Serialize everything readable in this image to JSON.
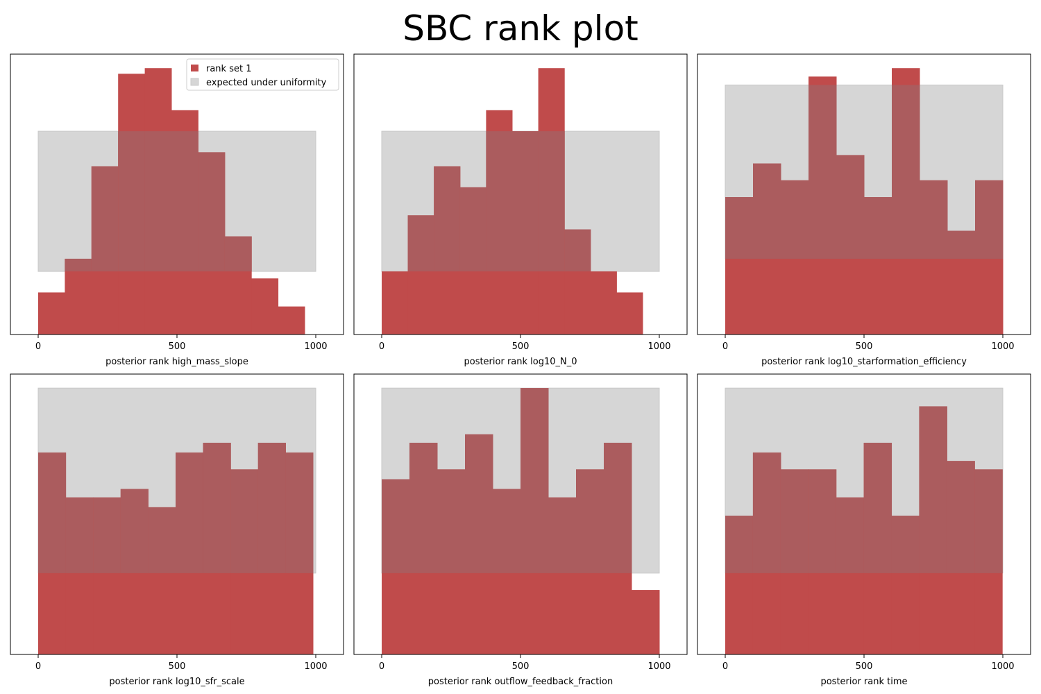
{
  "figure": {
    "title": "SBC rank plot"
  },
  "legend": {
    "placement": "top-right of first panel",
    "entries": [
      {
        "label": "rank set 1",
        "color": "#c04b4b"
      },
      {
        "label": "expected under uniformity",
        "color": "#d6d6d6"
      }
    ]
  },
  "colors": {
    "hist": "#c04b4b",
    "overlap": "#ab5c5e",
    "band": "#d6d6d6"
  },
  "chart_data": [
    {
      "type": "bar",
      "xlabel": "posterior rank high_mass_slope",
      "xlim": [
        -100,
        1100
      ],
      "xticks": [
        0,
        500,
        1000
      ],
      "bins": [
        [
          0,
          96
        ],
        [
          96,
          192
        ],
        [
          192,
          288
        ],
        [
          288,
          384
        ],
        [
          384,
          480
        ],
        [
          480,
          576
        ],
        [
          576,
          672
        ],
        [
          672,
          768
        ],
        [
          768,
          864
        ],
        [
          864,
          960
        ]
      ],
      "values": [
        15,
        27,
        60,
        93,
        95,
        80,
        65,
        35,
        20,
        10
      ],
      "uniformity_band": {
        "x": [
          0,
          1000
        ],
        "y": [
          22.5,
          72.5
        ]
      },
      "ylim": [
        0,
        100
      ]
    },
    {
      "type": "bar",
      "xlabel": "posterior rank log10_N_0",
      "xlim": [
        -100,
        1100
      ],
      "xticks": [
        0,
        500,
        1000
      ],
      "bins": [
        [
          0,
          94
        ],
        [
          94,
          188
        ],
        [
          188,
          282
        ],
        [
          282,
          376
        ],
        [
          376,
          470
        ],
        [
          470,
          564
        ],
        [
          564,
          658
        ],
        [
          658,
          752
        ],
        [
          752,
          846
        ],
        [
          846,
          940
        ]
      ],
      "values": [
        22.5,
        42.5,
        60,
        52.5,
        80,
        72.5,
        95,
        37.5,
        22.5,
        15
      ],
      "uniformity_band": {
        "x": [
          0,
          1000
        ],
        "y": [
          22.5,
          72.5
        ]
      },
      "ylim": [
        0,
        100
      ]
    },
    {
      "type": "bar",
      "xlabel": "posterior rank log10_starformation_efficiency",
      "xlim": [
        -100,
        1100
      ],
      "xticks": [
        0,
        500,
        1000
      ],
      "bins": [
        [
          0,
          100
        ],
        [
          100,
          200
        ],
        [
          200,
          300
        ],
        [
          300,
          400
        ],
        [
          400,
          500
        ],
        [
          500,
          600
        ],
        [
          600,
          700
        ],
        [
          700,
          800
        ],
        [
          800,
          900
        ],
        [
          900,
          1000
        ]
      ],
      "values": [
        49,
        61,
        55,
        92,
        64,
        49,
        95,
        55,
        37,
        55
      ],
      "uniformity_band": {
        "x": [
          0,
          1000
        ],
        "y": [
          27,
          89
        ]
      },
      "ylim": [
        0,
        100
      ]
    },
    {
      "type": "bar",
      "xlabel": "posterior rank log10_sfr_scale",
      "xlim": [
        -100,
        1100
      ],
      "xticks": [
        0,
        500,
        1000
      ],
      "bins": [
        [
          0,
          99
        ],
        [
          99,
          198
        ],
        [
          198,
          297
        ],
        [
          297,
          396
        ],
        [
          396,
          495
        ],
        [
          495,
          594
        ],
        [
          594,
          693
        ],
        [
          693,
          792
        ],
        [
          792,
          891
        ],
        [
          891,
          990
        ]
      ],
      "values": [
        72,
        56,
        56,
        59,
        52.5,
        72,
        75.5,
        66,
        75.5,
        72
      ],
      "uniformity_band": {
        "x": [
          0,
          1000
        ],
        "y": [
          29,
          95
        ]
      },
      "ylim": [
        0,
        100
      ]
    },
    {
      "type": "bar",
      "xlabel": "posterior rank outflow_feedback_fraction",
      "xlim": [
        -100,
        1100
      ],
      "xticks": [
        0,
        500,
        1000
      ],
      "bins": [
        [
          0,
          100
        ],
        [
          100,
          200
        ],
        [
          200,
          300
        ],
        [
          300,
          400
        ],
        [
          400,
          500
        ],
        [
          500,
          600
        ],
        [
          600,
          700
        ],
        [
          700,
          800
        ],
        [
          800,
          900
        ],
        [
          900,
          1000
        ]
      ],
      "values": [
        62.5,
        75.5,
        66,
        78.5,
        59,
        95,
        56,
        66,
        75.5,
        23
      ],
      "uniformity_band": {
        "x": [
          0,
          1000
        ],
        "y": [
          29,
          95
        ]
      },
      "ylim": [
        0,
        100
      ]
    },
    {
      "type": "bar",
      "xlabel": "posterior rank time",
      "xlim": [
        -100,
        1100
      ],
      "xticks": [
        0,
        500,
        1000
      ],
      "bins": [
        [
          0,
          99.8
        ],
        [
          99.8,
          199.6
        ],
        [
          199.6,
          299.4
        ],
        [
          299.4,
          399.2
        ],
        [
          399.2,
          499
        ],
        [
          499,
          598.8
        ],
        [
          598.8,
          698.6
        ],
        [
          698.6,
          798.4
        ],
        [
          798.4,
          898.2
        ],
        [
          898.2,
          998
        ]
      ],
      "values": [
        49.5,
        72,
        66,
        66,
        56,
        75.5,
        49.5,
        88.5,
        69,
        66
      ],
      "uniformity_band": {
        "x": [
          0,
          1000
        ],
        "y": [
          29,
          95
        ]
      },
      "ylim": [
        0,
        100
      ]
    }
  ]
}
